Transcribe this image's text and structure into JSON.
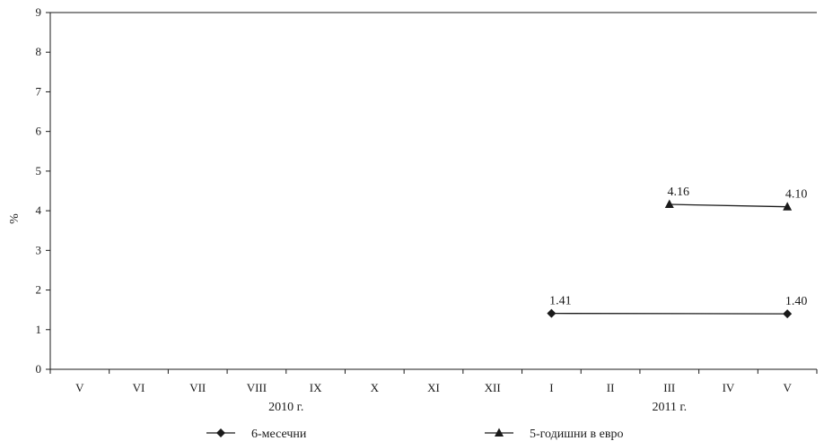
{
  "chart_data": {
    "type": "line",
    "ylabel": "%",
    "ylim": [
      0,
      9
    ],
    "yticks": [
      "0",
      "1",
      "2",
      "3",
      "4",
      "5",
      "6",
      "7",
      "8",
      "9"
    ],
    "categories": [
      "V",
      "VI",
      "VII",
      "VIII",
      "IX",
      "X",
      "XI",
      "XII",
      "I",
      "II",
      "III",
      "IV",
      "V"
    ],
    "year_groups": [
      {
        "label": "2010 г.",
        "from": 0,
        "to": 7
      },
      {
        "label": "2011 г.",
        "from": 8,
        "to": 12
      }
    ],
    "legend_position": "bottom",
    "grid": false,
    "series": [
      {
        "name": "6-месечни",
        "marker": "diamond",
        "color": "#1a1a1a",
        "values": [
          null,
          null,
          null,
          null,
          null,
          null,
          null,
          null,
          1.41,
          null,
          null,
          null,
          1.4
        ],
        "labels": [
          "",
          "",
          "",
          "",
          "",
          "",
          "",
          "",
          "1.41",
          "",
          "",
          "",
          "1.40"
        ]
      },
      {
        "name": "5-годишни в евро",
        "marker": "triangle",
        "color": "#1a1a1a",
        "values": [
          null,
          null,
          null,
          null,
          null,
          null,
          null,
          null,
          null,
          null,
          4.16,
          null,
          4.1
        ],
        "labels": [
          "",
          "",
          "",
          "",
          "",
          "",
          "",
          "",
          "",
          "",
          "4.16",
          "",
          "4.10"
        ]
      }
    ]
  }
}
